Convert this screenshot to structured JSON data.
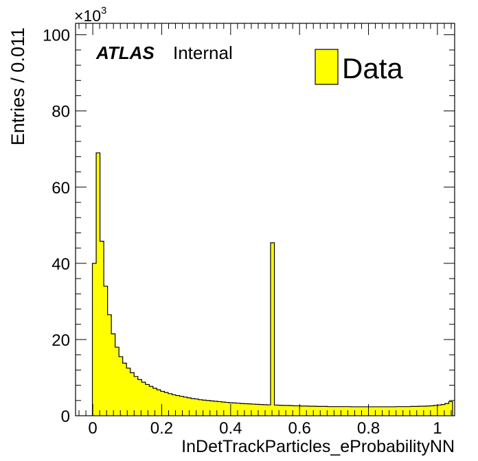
{
  "chart_data": {
    "type": "bar",
    "subtype": "histogram",
    "xlabel": "InDetTrackParticles_eProbabilityNN",
    "ylabel": "Entries / 0.011",
    "y_multiplier": "×10",
    "y_multiplier_exp": "3",
    "xlim": [
      -0.05,
      1.05
    ],
    "ylim": [
      0,
      103
    ],
    "x_ticks": [
      0,
      0.2,
      0.4,
      0.6,
      0.8,
      1
    ],
    "x_tick_labels": [
      "0",
      "0.2",
      "0.4",
      "0.6",
      "0.8",
      "1"
    ],
    "y_ticks": [
      0,
      20,
      40,
      60,
      80,
      100
    ],
    "y_tick_labels": [
      "0",
      "20",
      "40",
      "60",
      "80",
      "100"
    ],
    "bin_width": 0.011,
    "bin_start": -0.0011,
    "values": [
      40.0,
      69.0,
      45.8,
      34.0,
      26.5,
      21.5,
      18.0,
      15.5,
      13.8,
      12.5,
      11.3,
      10.3,
      9.5,
      8.8,
      8.2,
      7.7,
      7.2,
      6.8,
      6.4,
      6.1,
      5.8,
      5.5,
      5.3,
      5.1,
      4.9,
      4.7,
      4.5,
      4.4,
      4.2,
      4.1,
      4.0,
      3.9,
      3.8,
      3.7,
      3.6,
      3.5,
      3.4,
      3.35,
      3.3,
      3.2,
      3.15,
      3.1,
      3.05,
      3.0,
      2.95,
      2.9,
      2.85,
      45.4,
      2.8,
      2.75,
      2.7,
      2.7,
      2.65,
      2.6,
      2.6,
      2.55,
      2.55,
      2.5,
      2.5,
      2.45,
      2.45,
      2.45,
      2.4,
      2.4,
      2.4,
      2.4,
      2.4,
      2.4,
      2.35,
      2.35,
      2.35,
      2.35,
      2.35,
      2.35,
      2.35,
      2.35,
      2.35,
      2.35,
      2.35,
      2.35,
      2.4,
      2.4,
      2.4,
      2.4,
      2.45,
      2.45,
      2.5,
      2.5,
      2.55,
      2.6,
      2.7,
      2.8,
      2.95,
      3.2,
      3.7
    ],
    "series": [
      {
        "name": "Data",
        "color": "#ffff00"
      }
    ],
    "legend_placement": "top-right",
    "grid": false
  },
  "annotation": {
    "experiment": "ATLAS",
    "status": "Internal"
  },
  "colors": {
    "fill": "#ffff00",
    "line": "#000000"
  }
}
